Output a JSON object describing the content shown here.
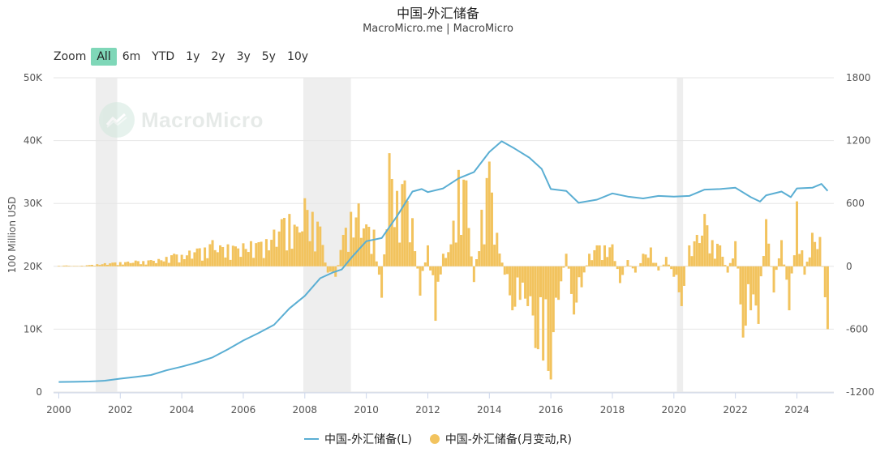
{
  "header": {
    "title": "中国-外汇储备",
    "subtitle": "MacroMicro.me | MacroMicro"
  },
  "zoom": {
    "label": "Zoom",
    "buttons": [
      "All",
      "6m",
      "YTD",
      "1y",
      "2y",
      "3y",
      "5y",
      "10y"
    ],
    "active": "All"
  },
  "watermark": {
    "text": "MacroMicro"
  },
  "legend": {
    "line_label": "中国-外汇储备(L)",
    "bar_label": "中国-外汇储备(月变动,R)"
  },
  "colors": {
    "line": "#5aaed3",
    "bar": "#f2c35e",
    "band": "#eeeeee",
    "active_zoom": "#7fd7b8"
  },
  "chart_data": {
    "type": "line+bar",
    "x_range": [
      1999.83,
      2025.2
    ],
    "x_ticks": [
      "2000",
      "2002",
      "2004",
      "2006",
      "2008",
      "2010",
      "2012",
      "2014",
      "2016",
      "2018",
      "2020",
      "2022",
      "2024"
    ],
    "y_left": {
      "label": "100 Million USD",
      "range": [
        0,
        50000
      ],
      "ticks": [
        "0",
        "10K",
        "20K",
        "30K",
        "40K",
        "50K"
      ]
    },
    "y_right": {
      "range": [
        -1200,
        1800
      ],
      "ticks": [
        "-1200",
        "-600",
        "0",
        "600",
        "1200",
        "1800"
      ]
    },
    "recession_bands": [
      [
        2001.2,
        2001.9
      ],
      [
        2007.95,
        2009.5
      ],
      [
        2020.1,
        2020.3
      ]
    ],
    "series": [
      {
        "name": "中国-外汇储备(L)",
        "axis": "left",
        "type": "line",
        "points": [
          [
            2000.0,
            1600
          ],
          [
            2000.5,
            1620
          ],
          [
            2001.0,
            1680
          ],
          [
            2001.5,
            1800
          ],
          [
            2002.0,
            2120
          ],
          [
            2002.5,
            2400
          ],
          [
            2003.0,
            2700
          ],
          [
            2003.5,
            3460
          ],
          [
            2004.0,
            4030
          ],
          [
            2004.5,
            4700
          ],
          [
            2005.0,
            5500
          ],
          [
            2005.5,
            6800
          ],
          [
            2006.0,
            8200
          ],
          [
            2006.5,
            9400
          ],
          [
            2007.0,
            10700
          ],
          [
            2007.5,
            13300
          ],
          [
            2008.0,
            15300
          ],
          [
            2008.5,
            18100
          ],
          [
            2008.9,
            19000
          ],
          [
            2009.2,
            19500
          ],
          [
            2009.5,
            21300
          ],
          [
            2010.0,
            24000
          ],
          [
            2010.5,
            24500
          ],
          [
            2011.0,
            28000
          ],
          [
            2011.5,
            31900
          ],
          [
            2011.8,
            32300
          ],
          [
            2012.0,
            31800
          ],
          [
            2012.5,
            32400
          ],
          [
            2013.0,
            34000
          ],
          [
            2013.5,
            35000
          ],
          [
            2014.0,
            38200
          ],
          [
            2014.4,
            39900
          ],
          [
            2014.8,
            38800
          ],
          [
            2015.3,
            37300
          ],
          [
            2015.7,
            35500
          ],
          [
            2016.0,
            32300
          ],
          [
            2016.5,
            32000
          ],
          [
            2016.9,
            30100
          ],
          [
            2017.5,
            30600
          ],
          [
            2018.0,
            31600
          ],
          [
            2018.5,
            31100
          ],
          [
            2019.0,
            30800
          ],
          [
            2019.5,
            31200
          ],
          [
            2020.0,
            31100
          ],
          [
            2020.5,
            31200
          ],
          [
            2021.0,
            32200
          ],
          [
            2021.5,
            32300
          ],
          [
            2022.0,
            32500
          ],
          [
            2022.5,
            31000
          ],
          [
            2022.8,
            30300
          ],
          [
            2023.0,
            31300
          ],
          [
            2023.5,
            31900
          ],
          [
            2023.8,
            31000
          ],
          [
            2024.0,
            32400
          ],
          [
            2024.5,
            32500
          ],
          [
            2024.8,
            33100
          ],
          [
            2025.0,
            32000
          ]
        ]
      },
      {
        "name": "中国-外汇储备(月变动,R)",
        "axis": "right",
        "type": "bar",
        "points": [
          [
            2000.0,
            5
          ],
          [
            2000.25,
            8
          ],
          [
            2000.5,
            4
          ],
          [
            2000.75,
            6
          ],
          [
            2001.0,
            12
          ],
          [
            2001.25,
            20
          ],
          [
            2001.5,
            30
          ],
          [
            2001.75,
            35
          ],
          [
            2002.0,
            40
          ],
          [
            2002.25,
            45
          ],
          [
            2002.5,
            55
          ],
          [
            2002.75,
            50
          ],
          [
            2003.0,
            60
          ],
          [
            2003.25,
            70
          ],
          [
            2003.5,
            90
          ],
          [
            2003.75,
            120
          ],
          [
            2004.0,
            110
          ],
          [
            2004.25,
            150
          ],
          [
            2004.5,
            170
          ],
          [
            2004.75,
            180
          ],
          [
            2005.0,
            250
          ],
          [
            2005.25,
            200
          ],
          [
            2005.5,
            210
          ],
          [
            2005.75,
            190
          ],
          [
            2006.0,
            220
          ],
          [
            2006.25,
            240
          ],
          [
            2006.5,
            230
          ],
          [
            2006.75,
            260
          ],
          [
            2007.0,
            350
          ],
          [
            2007.25,
            450
          ],
          [
            2007.5,
            500
          ],
          [
            2007.75,
            380
          ],
          [
            2008.0,
            650
          ],
          [
            2008.25,
            520
          ],
          [
            2008.5,
            380
          ],
          [
            2008.75,
            -60
          ],
          [
            2009.0,
            -100
          ],
          [
            2009.25,
            300
          ],
          [
            2009.5,
            520
          ],
          [
            2009.75,
            600
          ],
          [
            2010.0,
            400
          ],
          [
            2010.25,
            350
          ],
          [
            2010.5,
            -300
          ],
          [
            2010.75,
            1080
          ],
          [
            2011.0,
            720
          ],
          [
            2011.25,
            820
          ],
          [
            2011.5,
            460
          ],
          [
            2011.75,
            -280
          ],
          [
            2012.0,
            200
          ],
          [
            2012.25,
            -520
          ],
          [
            2012.5,
            120
          ],
          [
            2012.75,
            210
          ],
          [
            2013.0,
            920
          ],
          [
            2013.25,
            820
          ],
          [
            2013.5,
            -150
          ],
          [
            2013.75,
            540
          ],
          [
            2014.0,
            1000
          ],
          [
            2014.25,
            320
          ],
          [
            2014.5,
            -80
          ],
          [
            2014.75,
            -420
          ],
          [
            2015.0,
            -320
          ],
          [
            2015.25,
            -380
          ],
          [
            2015.5,
            -780
          ],
          [
            2015.75,
            -900
          ],
          [
            2016.0,
            -1080
          ],
          [
            2016.25,
            -320
          ],
          [
            2016.5,
            120
          ],
          [
            2016.75,
            -460
          ],
          [
            2017.0,
            -200
          ],
          [
            2017.25,
            120
          ],
          [
            2017.5,
            200
          ],
          [
            2017.75,
            200
          ],
          [
            2018.0,
            210
          ],
          [
            2018.25,
            -160
          ],
          [
            2018.5,
            60
          ],
          [
            2018.75,
            -60
          ],
          [
            2019.0,
            120
          ],
          [
            2019.25,
            180
          ],
          [
            2019.5,
            -40
          ],
          [
            2019.75,
            90
          ],
          [
            2020.0,
            -100
          ],
          [
            2020.25,
            -380
          ],
          [
            2020.5,
            200
          ],
          [
            2020.75,
            300
          ],
          [
            2021.0,
            500
          ],
          [
            2021.25,
            250
          ],
          [
            2021.5,
            200
          ],
          [
            2021.75,
            -60
          ],
          [
            2022.0,
            240
          ],
          [
            2022.25,
            -680
          ],
          [
            2022.5,
            -420
          ],
          [
            2022.75,
            -550
          ],
          [
            2023.0,
            450
          ],
          [
            2023.25,
            -250
          ],
          [
            2023.5,
            250
          ],
          [
            2023.75,
            -420
          ],
          [
            2024.0,
            620
          ],
          [
            2024.25,
            -80
          ],
          [
            2024.5,
            320
          ],
          [
            2024.75,
            280
          ],
          [
            2025.0,
            -600
          ]
        ]
      }
    ]
  }
}
